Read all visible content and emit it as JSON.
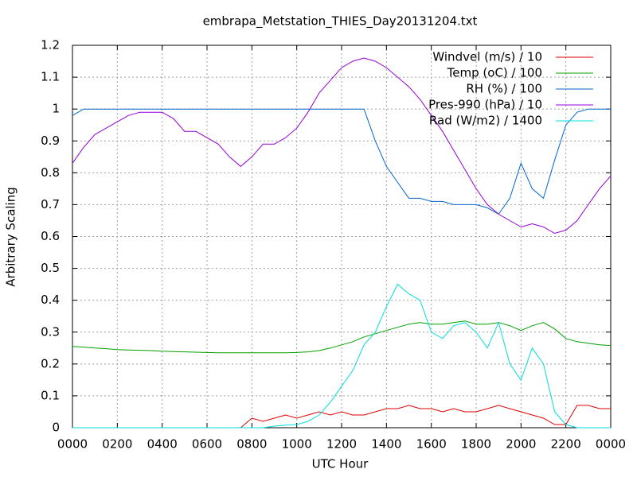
{
  "chart_data": {
    "type": "line",
    "title": "embrapa_Metstation_THIES_Day20131204.txt",
    "x_label": "UTC Hour",
    "y_label": "Arbitrary Scaling",
    "x": [
      0,
      0.5,
      1,
      1.5,
      2,
      2.5,
      3,
      3.5,
      4,
      4.5,
      5,
      5.5,
      6,
      6.5,
      7,
      7.5,
      8,
      8.5,
      9,
      9.5,
      10,
      10.5,
      11,
      11.5,
      12,
      12.5,
      13,
      13.5,
      14,
      14.5,
      15,
      15.5,
      16,
      16.5,
      17,
      17.5,
      18,
      18.5,
      19,
      19.5,
      20,
      20.5,
      21,
      21.5,
      22,
      22.5,
      23,
      23.5,
      24
    ],
    "series": [
      {
        "name": "Windvel (m/s) / 10",
        "color": "#e00000",
        "values": [
          0,
          0,
          0,
          0,
          0,
          0,
          0,
          0,
          0,
          0,
          0,
          0,
          0,
          0,
          0,
          0,
          0.03,
          0.02,
          0.03,
          0.04,
          0.03,
          0.04,
          0.05,
          0.04,
          0.05,
          0.04,
          0.04,
          0.05,
          0.06,
          0.06,
          0.07,
          0.06,
          0.06,
          0.05,
          0.06,
          0.05,
          0.05,
          0.06,
          0.07,
          0.06,
          0.05,
          0.04,
          0.03,
          0.01,
          0.01,
          0.07,
          0.07,
          0.06,
          0.06
        ]
      },
      {
        "name": "Temp (oC) / 100",
        "color": "#00a000",
        "values": [
          0.255,
          0.253,
          0.25,
          0.248,
          0.245,
          0.244,
          0.243,
          0.242,
          0.24,
          0.239,
          0.238,
          0.237,
          0.236,
          0.235,
          0.235,
          0.235,
          0.235,
          0.235,
          0.235,
          0.235,
          0.236,
          0.238,
          0.242,
          0.25,
          0.26,
          0.27,
          0.285,
          0.295,
          0.305,
          0.315,
          0.325,
          0.33,
          0.325,
          0.325,
          0.33,
          0.335,
          0.325,
          0.325,
          0.33,
          0.32,
          0.305,
          0.32,
          0.33,
          0.31,
          0.28,
          0.27,
          0.265,
          0.26,
          0.258
        ]
      },
      {
        "name": "RH (%) / 100",
        "color": "#0066cc",
        "values": [
          0.98,
          1,
          1,
          1,
          1,
          1,
          1,
          1,
          1,
          1,
          1,
          1,
          1,
          1,
          1,
          1,
          1,
          1,
          1,
          1,
          1,
          1,
          1,
          1,
          1,
          1,
          1,
          0.9,
          0.82,
          0.77,
          0.72,
          0.72,
          0.71,
          0.71,
          0.7,
          0.7,
          0.7,
          0.69,
          0.67,
          0.72,
          0.83,
          0.75,
          0.72,
          0.84,
          0.95,
          0.99,
          1,
          1,
          1
        ]
      },
      {
        "name": "Pres-990 (hPa) / 10",
        "color": "#9400d3",
        "values": [
          0.83,
          0.88,
          0.92,
          0.94,
          0.96,
          0.98,
          0.99,
          0.99,
          0.99,
          0.97,
          0.93,
          0.93,
          0.91,
          0.89,
          0.85,
          0.82,
          0.85,
          0.89,
          0.89,
          0.91,
          0.94,
          0.99,
          1.05,
          1.09,
          1.13,
          1.15,
          1.16,
          1.15,
          1.13,
          1.1,
          1.07,
          1.03,
          0.98,
          0.93,
          0.87,
          0.81,
          0.75,
          0.7,
          0.67,
          0.65,
          0.63,
          0.64,
          0.63,
          0.61,
          0.62,
          0.65,
          0.7,
          0.75,
          0.79
        ]
      },
      {
        "name": "Rad (W/m2) / 1400",
        "color": "#00dddd",
        "values": [
          0,
          0,
          0,
          0,
          0,
          0,
          0,
          0,
          0,
          0,
          0,
          0,
          0,
          0,
          0,
          0,
          0,
          0,
          0.005,
          0.008,
          0.01,
          0.02,
          0.04,
          0.08,
          0.13,
          0.18,
          0.26,
          0.3,
          0.38,
          0.45,
          0.42,
          0.4,
          0.3,
          0.28,
          0.32,
          0.33,
          0.3,
          0.25,
          0.33,
          0.2,
          0.15,
          0.25,
          0.2,
          0.05,
          0.01,
          0,
          0,
          0,
          0
        ]
      }
    ],
    "xlim": [
      0,
      24
    ],
    "xticks": [
      {
        "value": 0,
        "label": "0000"
      },
      {
        "value": 2,
        "label": "0200"
      },
      {
        "value": 4,
        "label": "0400"
      },
      {
        "value": 6,
        "label": "0600"
      },
      {
        "value": 8,
        "label": "0800"
      },
      {
        "value": 10,
        "label": "1000"
      },
      {
        "value": 12,
        "label": "1200"
      },
      {
        "value": 14,
        "label": "1400"
      },
      {
        "value": 16,
        "label": "1600"
      },
      {
        "value": 18,
        "label": "1800"
      },
      {
        "value": 20,
        "label": "2000"
      },
      {
        "value": 22,
        "label": "2200"
      },
      {
        "value": 24,
        "label": "0000"
      }
    ],
    "ylim": [
      0,
      1.2
    ],
    "yticks": [
      0,
      0.1,
      0.2,
      0.3,
      0.4,
      0.5,
      0.6,
      0.7,
      0.8,
      0.9,
      1,
      1.1,
      1.2
    ],
    "grid": true,
    "legend": "top-right"
  }
}
